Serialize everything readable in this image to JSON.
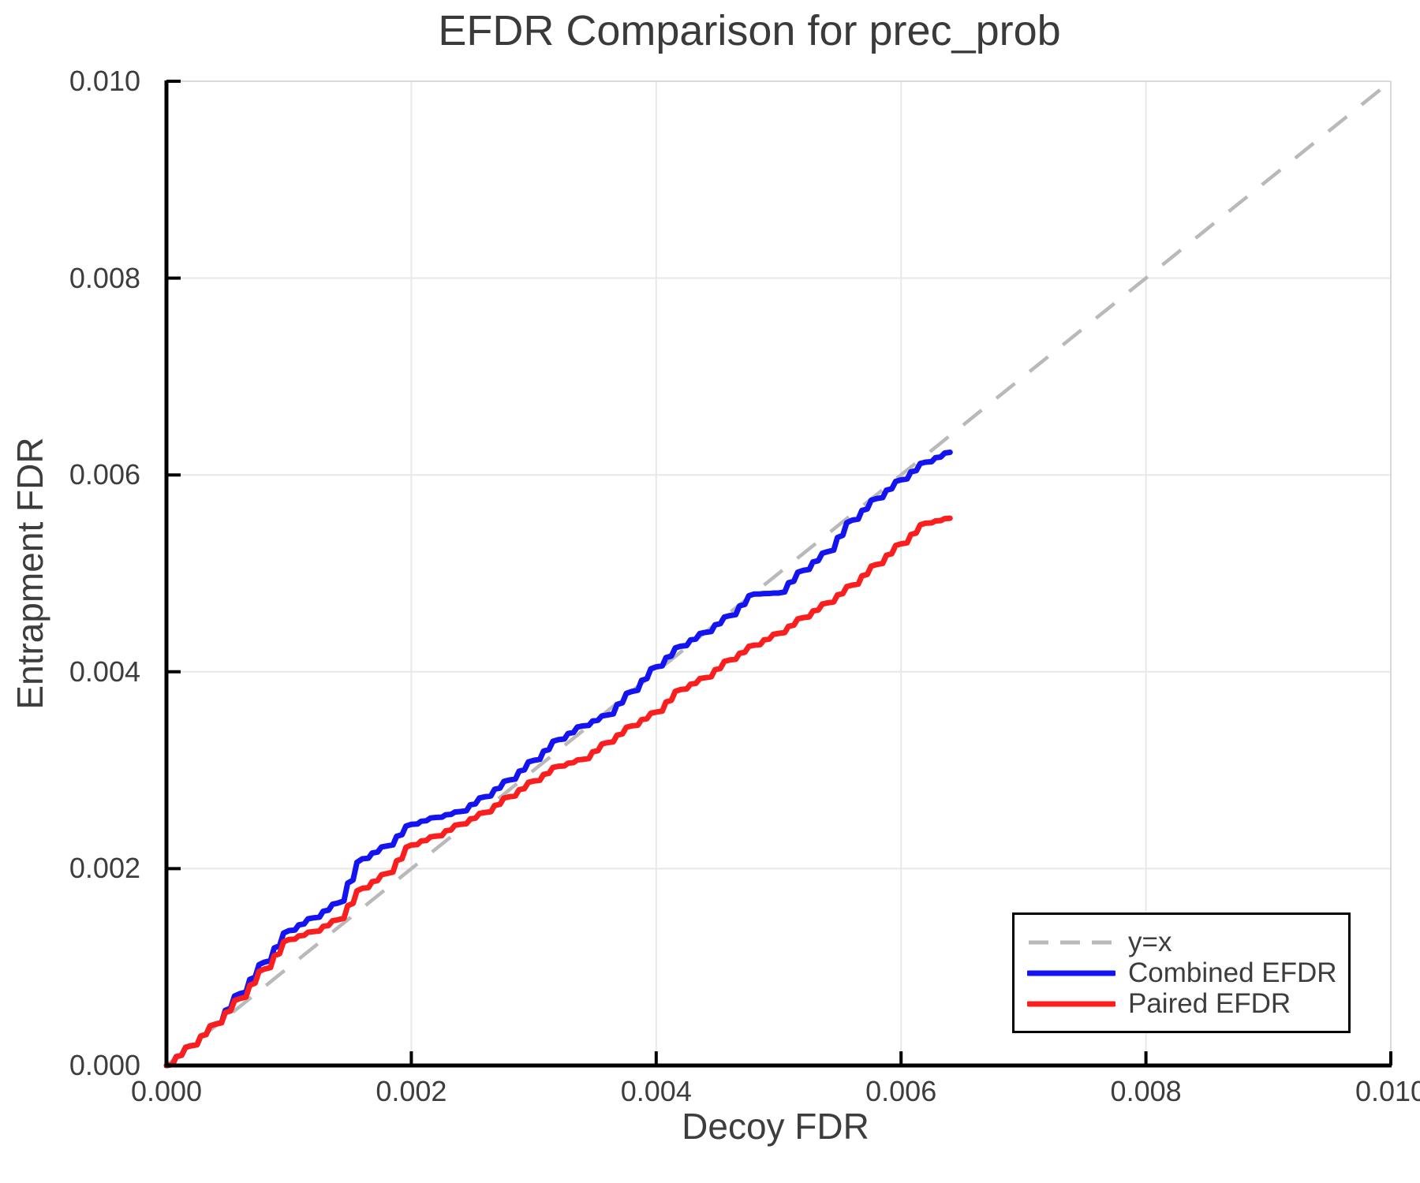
{
  "title": "EFDR Comparison for prec_prob",
  "axes": {
    "xlabel": "Decoy FDR",
    "ylabel": "Entrapment FDR",
    "x_ticks": [
      "0.000",
      "0.002",
      "0.004",
      "0.006",
      "0.008",
      "0.010"
    ],
    "y_ticks": [
      "0.000",
      "0.002",
      "0.004",
      "0.006",
      "0.008",
      "0.010"
    ]
  },
  "legend": {
    "items": [
      {
        "label": "y=x",
        "color": "#b9b9b9",
        "dashed": true
      },
      {
        "label": "Combined EFDR",
        "color": "#1414f0",
        "dashed": false
      },
      {
        "label": "Paired EFDR",
        "color": "#fa1e1e",
        "dashed": false
      }
    ]
  },
  "colors": {
    "grid": "#e8e8e8",
    "frame_light": "#d9d9d9",
    "spine": "#000000",
    "text": "#3d3d3d"
  },
  "chart_data": {
    "type": "line",
    "title": "EFDR Comparison for prec_prob",
    "xlabel": "Decoy FDR",
    "ylabel": "Entrapment FDR",
    "xlim": [
      0.0,
      0.01
    ],
    "ylim": [
      0.0,
      0.01
    ],
    "grid": true,
    "legend_position": "lower right",
    "series": [
      {
        "name": "y=x",
        "color": "#b9b9b9",
        "style": "dashed",
        "x": [
          0.0,
          0.01
        ],
        "y": [
          0.0,
          0.01
        ]
      },
      {
        "name": "Combined EFDR",
        "color": "#1414f0",
        "style": "solid",
        "x": [
          0.0,
          0.0002,
          0.0004,
          0.0006,
          0.0008,
          0.001,
          0.0012,
          0.0014,
          0.0016,
          0.0018,
          0.002,
          0.0022,
          0.0024,
          0.0026,
          0.0028,
          0.003,
          0.0032,
          0.0034,
          0.0036,
          0.0038,
          0.004,
          0.0042,
          0.0044,
          0.0046,
          0.0048,
          0.005,
          0.0052,
          0.0054,
          0.0056,
          0.0058,
          0.006,
          0.0062,
          0.0064
        ],
        "y": [
          0.0,
          0.0002,
          0.00042,
          0.00073,
          0.00105,
          0.00137,
          0.0015,
          0.00165,
          0.0021,
          0.00223,
          0.00245,
          0.00252,
          0.00258,
          0.00273,
          0.0029,
          0.0031,
          0.00331,
          0.00345,
          0.00356,
          0.0038,
          0.00405,
          0.00426,
          0.0044,
          0.00457,
          0.00479,
          0.0048,
          0.00503,
          0.00522,
          0.00554,
          0.00576,
          0.00595,
          0.00613,
          0.00623
        ]
      },
      {
        "name": "Paired EFDR",
        "color": "#fa1e1e",
        "style": "solid",
        "x": [
          0.0,
          0.0002,
          0.0004,
          0.0006,
          0.0008,
          0.001,
          0.0012,
          0.0014,
          0.0016,
          0.0018,
          0.002,
          0.0022,
          0.0024,
          0.0026,
          0.0028,
          0.003,
          0.0032,
          0.0034,
          0.0036,
          0.0038,
          0.004,
          0.0042,
          0.0044,
          0.0046,
          0.0048,
          0.005,
          0.0052,
          0.0054,
          0.0056,
          0.0058,
          0.006,
          0.0062,
          0.0064
        ],
        "y": [
          0.0,
          0.0002,
          0.00042,
          0.00068,
          0.00098,
          0.00128,
          0.00136,
          0.00148,
          0.0018,
          0.00195,
          0.00224,
          0.00233,
          0.00245,
          0.00257,
          0.00273,
          0.00289,
          0.00304,
          0.00311,
          0.00328,
          0.00345,
          0.00359,
          0.00382,
          0.00394,
          0.00412,
          0.00427,
          0.00439,
          0.00455,
          0.0047,
          0.00488,
          0.00509,
          0.0053,
          0.00551,
          0.00556
        ]
      }
    ]
  }
}
